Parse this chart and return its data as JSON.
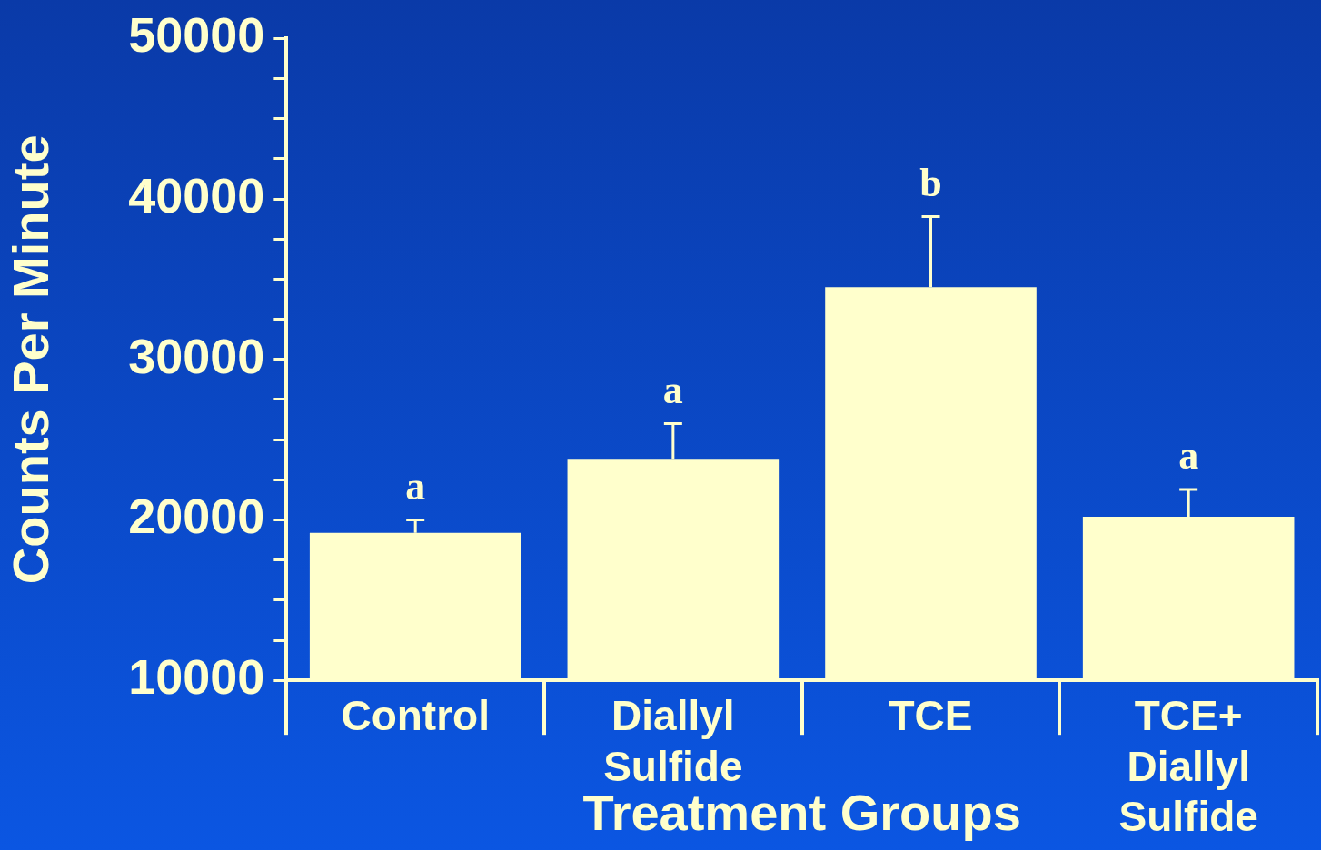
{
  "chart_data": {
    "type": "bar",
    "xlabel": "Treatment Groups",
    "ylabel": "Counts Per Minute",
    "categories": [
      "Control",
      "Diallyl Sulfide",
      "TCE",
      "TCE+ Diallyl Sulfide"
    ],
    "values": [
      19200,
      23800,
      34500,
      20200
    ],
    "color": "#ffffcc",
    "errors": [
      [
        19200,
        20000
      ],
      [
        23800,
        26000
      ],
      [
        34500,
        38900
      ],
      [
        20200,
        21900
      ]
    ],
    "ylim": [
      10000,
      50000
    ],
    "yticks": [
      10000,
      {
        "value": 12500,
        "label": null
      },
      {
        "value": 15000,
        "label": null
      },
      {
        "value": 17500,
        "label": null
      },
      20000,
      {
        "value": 22500,
        "label": null
      },
      {
        "value": 25000,
        "label": null
      },
      {
        "value": 27500,
        "label": null
      },
      30000,
      {
        "value": 32500,
        "label": null
      },
      {
        "value": 35000,
        "label": null
      },
      {
        "value": 37500,
        "label": null
      },
      40000,
      {
        "value": 42500,
        "label": null
      },
      {
        "value": 45000,
        "label": null
      },
      {
        "value": 47500,
        "label": null
      },
      50000
    ],
    "annotations": [
      "a",
      "a",
      "b",
      "a"
    ],
    "grid": false,
    "legend": false
  }
}
